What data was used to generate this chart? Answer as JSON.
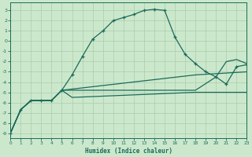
{
  "xlabel": "Humidex (Indice chaleur)",
  "bg_color": "#cce8cc",
  "grid_color": "#aaccaa",
  "line_color": "#1a6b5a",
  "xlim": [
    0,
    23
  ],
  "ylim": [
    -9.5,
    3.8
  ],
  "yticks": [
    3,
    2,
    1,
    0,
    -1,
    -2,
    -3,
    -4,
    -5,
    -6,
    -7,
    -8,
    -9
  ],
  "xticks": [
    0,
    1,
    2,
    3,
    4,
    5,
    6,
    7,
    8,
    9,
    10,
    11,
    12,
    13,
    14,
    15,
    16,
    17,
    18,
    19,
    20,
    21,
    22,
    23
  ],
  "curve1_x": [
    0,
    1,
    2,
    3,
    4,
    5,
    6,
    7,
    8,
    9,
    10,
    11,
    12,
    13,
    14,
    15,
    16,
    17,
    18,
    19,
    20,
    21,
    22,
    23
  ],
  "curve1_y": [
    -9.0,
    -6.7,
    -5.8,
    -5.8,
    -5.8,
    -4.8,
    -3.3,
    -1.5,
    0.2,
    1.0,
    2.0,
    2.3,
    2.6,
    3.0,
    3.1,
    3.0,
    0.4,
    -1.3,
    -2.2,
    -3.0,
    -3.5,
    -4.2,
    -2.5,
    -2.3
  ],
  "curve2_x": [
    0,
    1,
    2,
    3,
    4,
    5,
    18,
    23
  ],
  "curve2_y": [
    -9.0,
    -6.7,
    -5.8,
    -5.8,
    -5.8,
    -4.8,
    -3.3,
    -3.0
  ],
  "curve3_x": [
    0,
    1,
    2,
    3,
    4,
    5,
    18,
    20,
    21,
    22,
    23
  ],
  "curve3_y": [
    -9.0,
    -6.7,
    -5.8,
    -5.8,
    -5.8,
    -4.8,
    -4.8,
    -3.5,
    -2.0,
    -1.8,
    -2.2
  ],
  "curve4_x": [
    0,
    1,
    2,
    3,
    4,
    5,
    6,
    18,
    23
  ],
  "curve4_y": [
    -9.0,
    -6.7,
    -5.8,
    -5.8,
    -5.8,
    -4.8,
    -5.5,
    -5.0,
    -5.0
  ]
}
